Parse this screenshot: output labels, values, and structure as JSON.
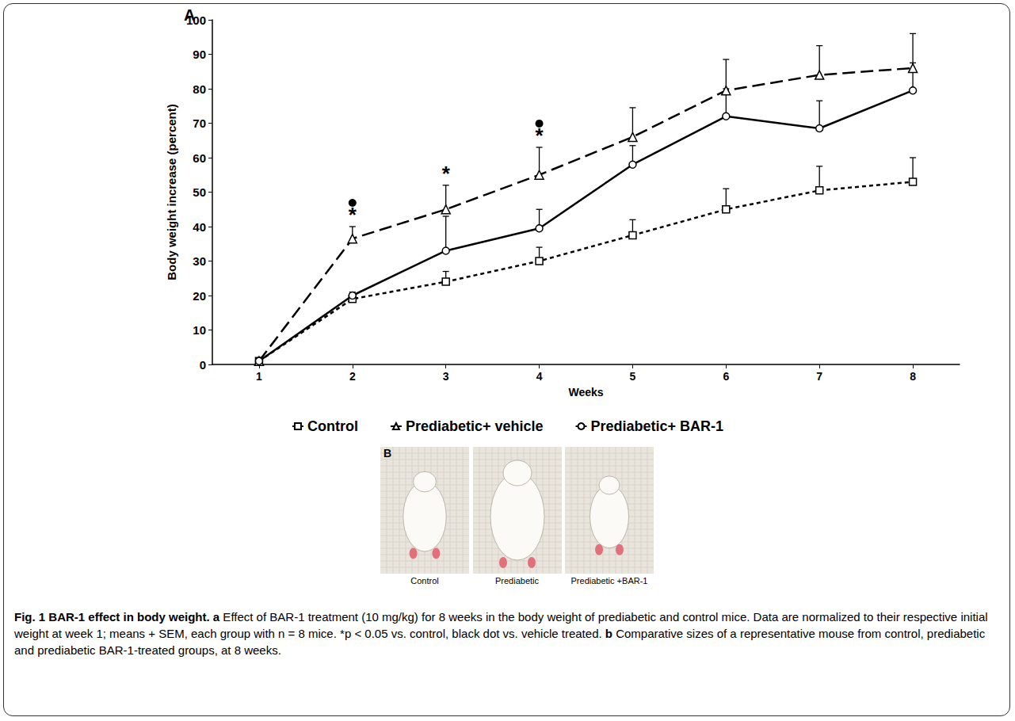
{
  "chart_data": {
    "type": "line",
    "panel": "A",
    "x_label": "Weeks",
    "y_label": "Body weight increase (percent)",
    "x": [
      1,
      2,
      3,
      4,
      5,
      6,
      7,
      8
    ],
    "xlim": [
      0.5,
      8.5
    ],
    "xticks": [
      1,
      2,
      3,
      4,
      5,
      6,
      7,
      8
    ],
    "ylim": [
      0,
      100
    ],
    "yticks": [
      0,
      10,
      20,
      30,
      40,
      50,
      60,
      70,
      80,
      90,
      100
    ],
    "grid": false,
    "legend": "bottom",
    "series": [
      {
        "name": "Control",
        "color": "#000000",
        "marker": "square",
        "line_style": "dotted",
        "values": [
          1,
          19,
          24,
          30,
          37.5,
          45,
          50.5,
          53
        ],
        "errors": [
          0,
          1.5,
          3,
          4,
          4.5,
          6,
          7,
          7
        ]
      },
      {
        "name": "Prediabetic+ vehicle",
        "color": "#000000",
        "marker": "triangle",
        "line_style": "dashed",
        "values": [
          1,
          36.5,
          45,
          55,
          66,
          79.5,
          84,
          86
        ],
        "errors": [
          0,
          3.5,
          7,
          8,
          8.5,
          9,
          8.5,
          10
        ]
      },
      {
        "name": "Prediabetic+ BAR-1",
        "color": "#000000",
        "marker": "circle",
        "line_style": "solid",
        "values": [
          1,
          20,
          33,
          39.5,
          58,
          72,
          68.5,
          79.5
        ],
        "errors": [
          0,
          1,
          10,
          5.5,
          5.5,
          8,
          8,
          8
        ]
      }
    ],
    "significance": [
      {
        "x": 2,
        "label": "*",
        "dot": true
      },
      {
        "x": 3,
        "label": "*",
        "dot": false
      },
      {
        "x": 4,
        "label": "*",
        "dot": true
      }
    ]
  },
  "panel_b": {
    "letter": "B",
    "images": [
      "Control",
      "Prediabetic",
      "Prediabetic +BAR-1"
    ]
  },
  "caption": {
    "title": "Fig. 1 BAR-1 effect in body weight.",
    "parts": [
      {
        "label": "a",
        "text": "Effect of BAR-1 treatment (10 mg/kg) for 8 weeks in the body weight of prediabetic and control mice. Data are normalized to their respective initial weight at week 1; means + SEM, each group with n = 8 mice. *p < 0.05 vs. control, black dot vs. vehicle treated."
      },
      {
        "label": "b",
        "text": "Comparative sizes of a representative mouse from control, prediabetic and prediabetic BAR-1-treated groups, at 8 weeks."
      }
    ]
  }
}
